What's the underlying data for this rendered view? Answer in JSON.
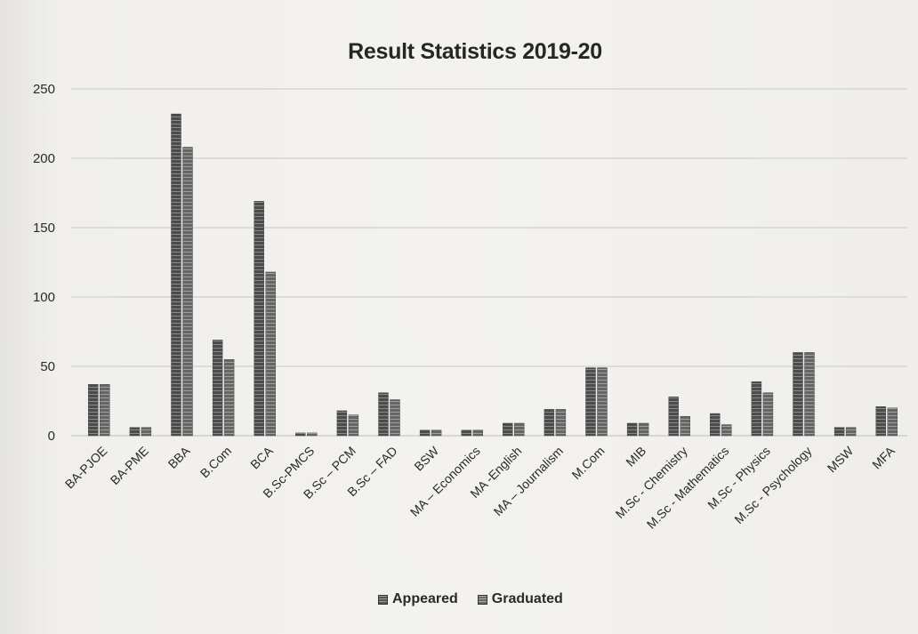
{
  "chart_data": {
    "type": "bar",
    "title": "Result Statistics 2019-20",
    "xlabel": "",
    "ylabel": "",
    "ylim": [
      0,
      250
    ],
    "yticks": [
      "0",
      "50",
      "100",
      "150",
      "200",
      "250"
    ],
    "grid": true,
    "legend_position": "bottom",
    "categories": [
      "BA-PJOE",
      "BA-PME",
      "BBA",
      "B.Com",
      "BCA",
      "B.Sc-PMCS",
      "B.Sc – PCM",
      "B.Sc – FAD",
      "BSW",
      "MA – Economics",
      "MA -English",
      "MA – Journalism",
      "M.Com",
      "MIB",
      "M.Sc - Chemistry",
      "M.Sc - Mathematics",
      "M.Sc - Physics",
      "M.Sc - Psychology",
      "MSW",
      "MFA"
    ],
    "series": [
      {
        "name": "Appeared",
        "color": "#555555",
        "values": [
          37,
          6,
          232,
          69,
          169,
          2,
          18,
          31,
          4,
          4,
          9,
          19,
          49,
          9,
          28,
          16,
          39,
          60,
          6,
          21
        ]
      },
      {
        "name": "Graduated",
        "color": "#777777",
        "values": [
          37,
          6,
          208,
          55,
          118,
          2,
          15,
          26,
          4,
          4,
          9,
          19,
          49,
          9,
          14,
          8,
          31,
          60,
          6,
          20
        ]
      }
    ]
  },
  "legend": {
    "appeared_label": "Appeared",
    "graduated_label": "Graduated"
  }
}
